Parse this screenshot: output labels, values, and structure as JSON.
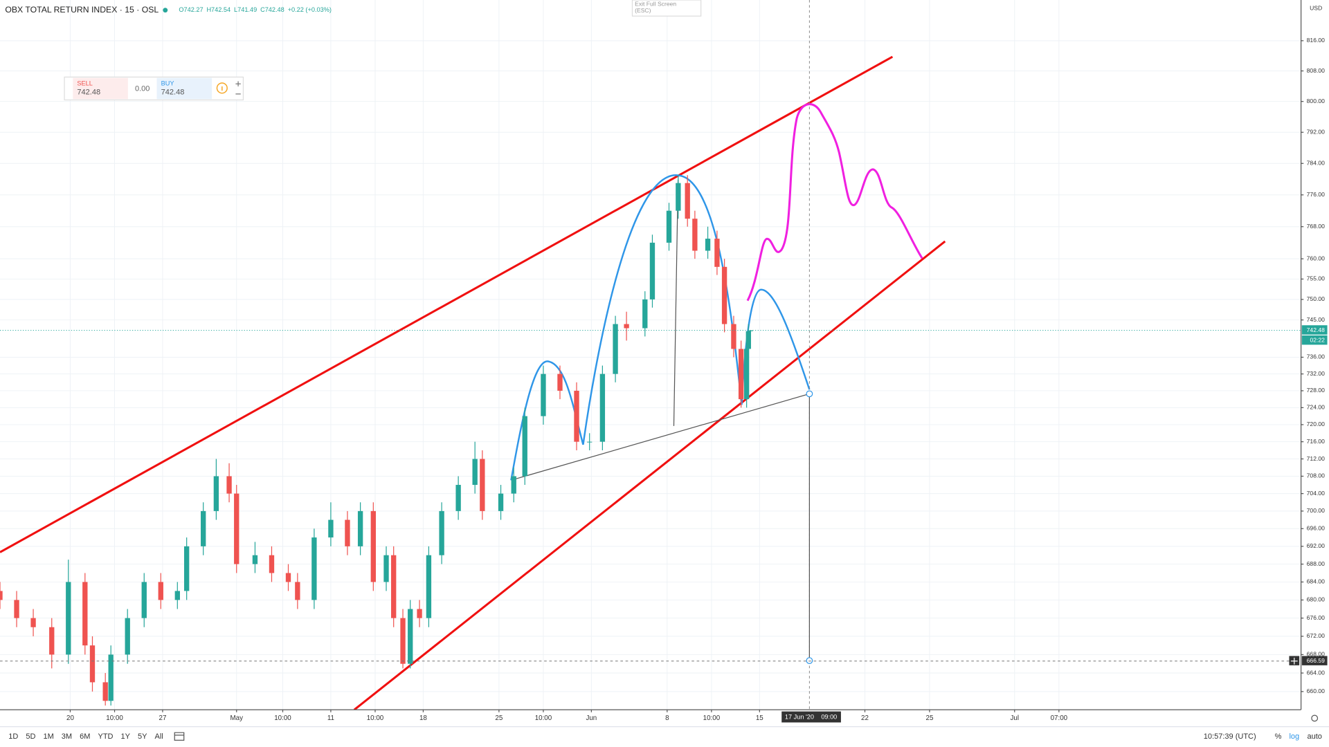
{
  "header": {
    "title": "OBX TOTAL RETURN INDEX · 15 · OSL",
    "ohlc": [
      "O742.27",
      "H742.54",
      "L741.49",
      "C742.48",
      "+0.22 (+0.03%)"
    ]
  },
  "exit_fullscreen": {
    "label": "Exit Full Screen",
    "key": "(ESC)"
  },
  "trade_panel": {
    "sell_label": "SELL",
    "sell_price": "742.48",
    "spread": "0.00",
    "buy_label": "BUY",
    "buy_price": "742.48"
  },
  "chart_data": {
    "type": "candlestick",
    "currency": "USD",
    "log_scale": true,
    "grid": true,
    "up_color": "#26a69a",
    "down_color": "#ef5350",
    "xlim": [
      0,
      70.4
    ],
    "ylim": [
      656.1,
      826.9
    ],
    "xticks": [
      {
        "value": 3.8,
        "label": "20"
      },
      {
        "value": 6.2,
        "label": "10:00"
      },
      {
        "value": 8.8,
        "label": "27"
      },
      {
        "value": 12.8,
        "label": "May"
      },
      {
        "value": 15.3,
        "label": "10:00"
      },
      {
        "value": 17.9,
        "label": "11"
      },
      {
        "value": 20.3,
        "label": "10:00"
      },
      {
        "value": 22.9,
        "label": "18"
      },
      {
        "value": 27.0,
        "label": "25"
      },
      {
        "value": 29.4,
        "label": "10:00"
      },
      {
        "value": 32.0,
        "label": "Jun"
      },
      {
        "value": 36.1,
        "label": "8"
      },
      {
        "value": 38.5,
        "label": "10:00"
      },
      {
        "value": 41.1,
        "label": "15"
      },
      {
        "value": 46.8,
        "label": "22"
      },
      {
        "value": 50.3,
        "label": "25"
      },
      {
        "value": 54.9,
        "label": "Jul"
      },
      {
        "value": 57.3,
        "label": "07:00"
      }
    ],
    "yticks": [
      {
        "value": 660,
        "label": "660.00"
      },
      {
        "value": 664,
        "label": "664.00"
      },
      {
        "value": 668,
        "label": "668.00"
      },
      {
        "value": 672,
        "label": "672.00"
      },
      {
        "value": 676,
        "label": "676.00"
      },
      {
        "value": 680,
        "label": "680.00"
      },
      {
        "value": 684,
        "label": "684.00"
      },
      {
        "value": 688,
        "label": "688.00"
      },
      {
        "value": 692,
        "label": "692.00"
      },
      {
        "value": 696,
        "label": "696.00"
      },
      {
        "value": 700,
        "label": "700.00"
      },
      {
        "value": 704,
        "label": "704.00"
      },
      {
        "value": 708,
        "label": "708.00"
      },
      {
        "value": 712,
        "label": "712.00"
      },
      {
        "value": 716,
        "label": "716.00"
      },
      {
        "value": 720,
        "label": "720.00"
      },
      {
        "value": 724,
        "label": "724.00"
      },
      {
        "value": 728,
        "label": "728.00"
      },
      {
        "value": 732,
        "label": "732.00"
      },
      {
        "value": 736,
        "label": "736.00"
      },
      {
        "value": 745,
        "label": "745.00"
      },
      {
        "value": 750,
        "label": "750.00"
      },
      {
        "value": 755,
        "label": "755.00"
      },
      {
        "value": 760,
        "label": "760.00"
      },
      {
        "value": 768,
        "label": "768.00"
      },
      {
        "value": 776,
        "label": "776.00"
      },
      {
        "value": 784,
        "label": "784.00"
      },
      {
        "value": 792,
        "label": "792.00"
      },
      {
        "value": 800,
        "label": "800.00"
      },
      {
        "value": 808,
        "label": "808.00"
      },
      {
        "value": 816,
        "label": "816.00"
      }
    ],
    "x": [
      0,
      0.9,
      1.8,
      2.8,
      3.7,
      4.6,
      5.0,
      5.7,
      6.0,
      6.9,
      7.8,
      8.7,
      9.6,
      10.1,
      11.0,
      11.7,
      12.4,
      12.8,
      13.8,
      14.7,
      15.6,
      16.1,
      17.0,
      17.9,
      18.8,
      19.5,
      20.2,
      20.9,
      21.3,
      21.8,
      22.2,
      22.7,
      23.2,
      23.9,
      24.8,
      25.7,
      26.1,
      27.1,
      27.8,
      28.4,
      29.4,
      30.3,
      31.2,
      31.9,
      32.6,
      33.3,
      33.9,
      34.9,
      35.3,
      36.2,
      36.7,
      37.2,
      37.6,
      38.3,
      38.8,
      39.2,
      39.7,
      40.1,
      40.4,
      40.5,
      40.6
    ],
    "open": [
      682,
      680,
      676,
      674,
      668,
      684,
      670,
      662,
      658,
      668,
      676,
      684,
      680,
      682,
      692,
      700,
      708,
      704,
      688,
      690,
      686,
      684,
      680,
      694,
      698,
      692,
      700,
      684,
      690,
      676,
      666,
      678,
      676,
      690,
      700,
      706,
      712,
      700,
      704,
      708,
      722,
      732,
      728,
      716,
      716,
      732,
      744,
      743,
      750,
      764,
      772,
      779,
      770,
      762,
      765,
      758,
      744,
      738,
      726,
      738,
      742.27
    ],
    "high": [
      684,
      682,
      678,
      676,
      689,
      686,
      672,
      664,
      670,
      678,
      686,
      686,
      684,
      694,
      702,
      712,
      711,
      706,
      693,
      692,
      688,
      686,
      696,
      702,
      700,
      702,
      702,
      692,
      692,
      678,
      680,
      680,
      692,
      702,
      708,
      716,
      714,
      706,
      710,
      724,
      734,
      734,
      730,
      718,
      734,
      746,
      747,
      752,
      766,
      774,
      781,
      781,
      772,
      768,
      767,
      760,
      746,
      740,
      740,
      744,
      742.54
    ],
    "low": [
      678,
      674,
      672,
      665,
      666,
      668,
      660,
      657,
      657,
      666,
      674,
      678,
      678,
      680,
      690,
      698,
      702,
      686,
      686,
      684,
      682,
      678,
      678,
      692,
      690,
      690,
      682,
      682,
      674,
      665,
      665,
      674,
      674,
      688,
      698,
      704,
      698,
      698,
      702,
      706,
      720,
      726,
      714,
      714,
      714,
      730,
      740,
      741,
      748,
      762,
      770,
      768,
      760,
      760,
      756,
      742,
      736,
      724,
      724,
      736,
      741.49
    ],
    "close": [
      680,
      676,
      674,
      668,
      684,
      670,
      662,
      658,
      668,
      676,
      684,
      680,
      682,
      692,
      700,
      708,
      704,
      688,
      690,
      686,
      684,
      680,
      694,
      698,
      692,
      700,
      684,
      690,
      676,
      666,
      678,
      676,
      690,
      700,
      706,
      712,
      700,
      704,
      708,
      722,
      732,
      728,
      716,
      716,
      732,
      744,
      743,
      750,
      764,
      772,
      779,
      770,
      762,
      765,
      758,
      744,
      738,
      726,
      738,
      742.27,
      742.48
    ],
    "last_price": 742.48,
    "countdown": "02:22",
    "crosshair": {
      "price": 666.59,
      "x": 43.9,
      "date_label": "17 Jun '20",
      "time_label": "09:00"
    }
  },
  "toolbar": {
    "ranges": [
      "1D",
      "5D",
      "1M",
      "3M",
      "6M",
      "YTD",
      "1Y",
      "5Y",
      "All"
    ],
    "clock": "10:57:39 (UTC)",
    "percent": "%",
    "log": "log",
    "auto": "auto"
  }
}
